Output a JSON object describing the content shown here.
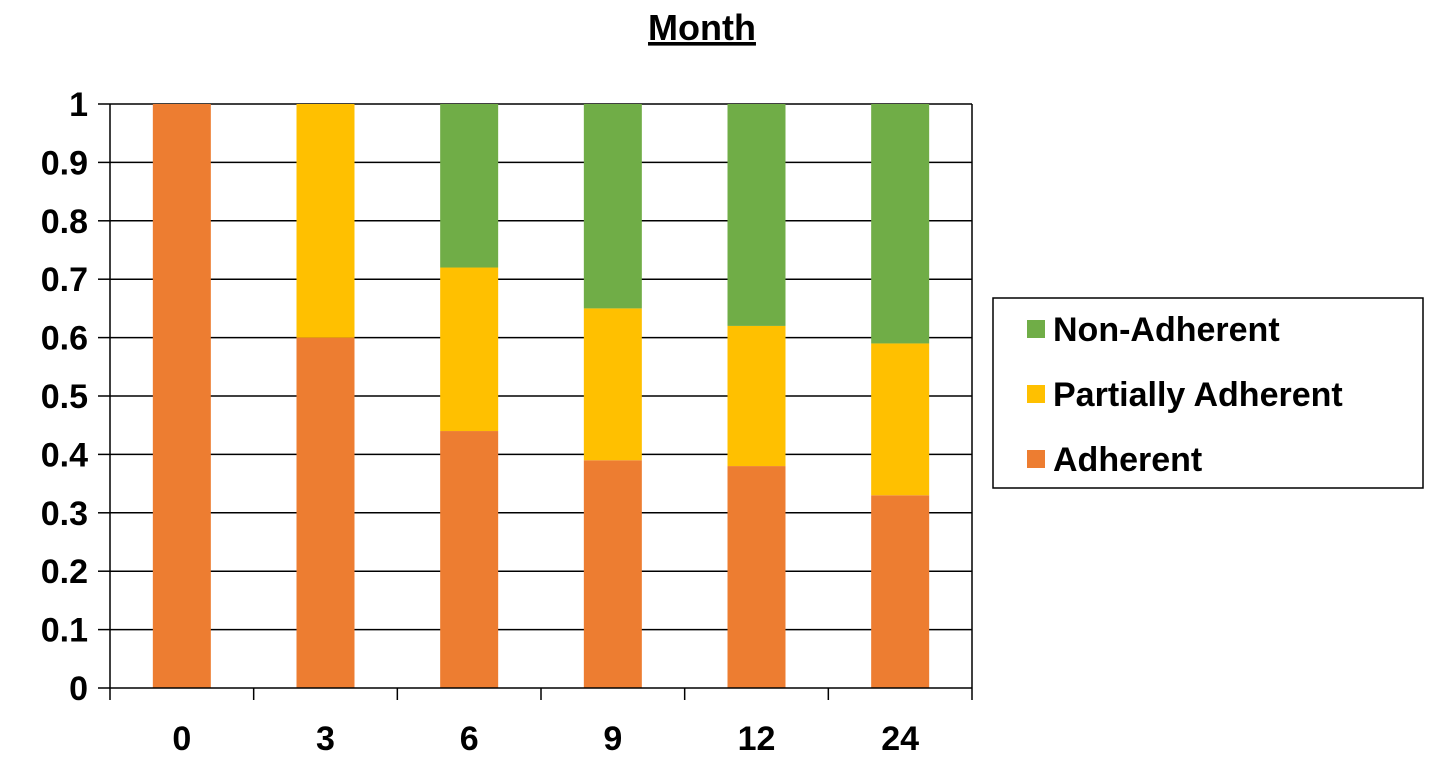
{
  "chart_data": {
    "type": "bar",
    "stacked": true,
    "title": "Month",
    "categories": [
      "0",
      "3",
      "6",
      "9",
      "12",
      "24"
    ],
    "series": [
      {
        "name": "Adherent",
        "color": "#ED7D31",
        "values": [
          1.0,
          0.6,
          0.44,
          0.39,
          0.38,
          0.33
        ]
      },
      {
        "name": "Partially Adherent",
        "color": "#FFC000",
        "values": [
          0.0,
          0.4,
          0.28,
          0.26,
          0.24,
          0.26
        ]
      },
      {
        "name": "Non-Adherent",
        "color": "#70AD47",
        "values": [
          0.0,
          0.0,
          0.28,
          0.35,
          0.38,
          0.41
        ]
      }
    ],
    "y_ticks": [
      "0",
      "0.1",
      "0.2",
      "0.3",
      "0.4",
      "0.5",
      "0.6",
      "0.7",
      "0.8",
      "0.9",
      "1"
    ],
    "ylim": [
      0,
      1
    ],
    "grid": true,
    "legend": {
      "placement": "right",
      "order": [
        "Non-Adherent",
        "Partially Adherent",
        "Adherent"
      ]
    }
  }
}
